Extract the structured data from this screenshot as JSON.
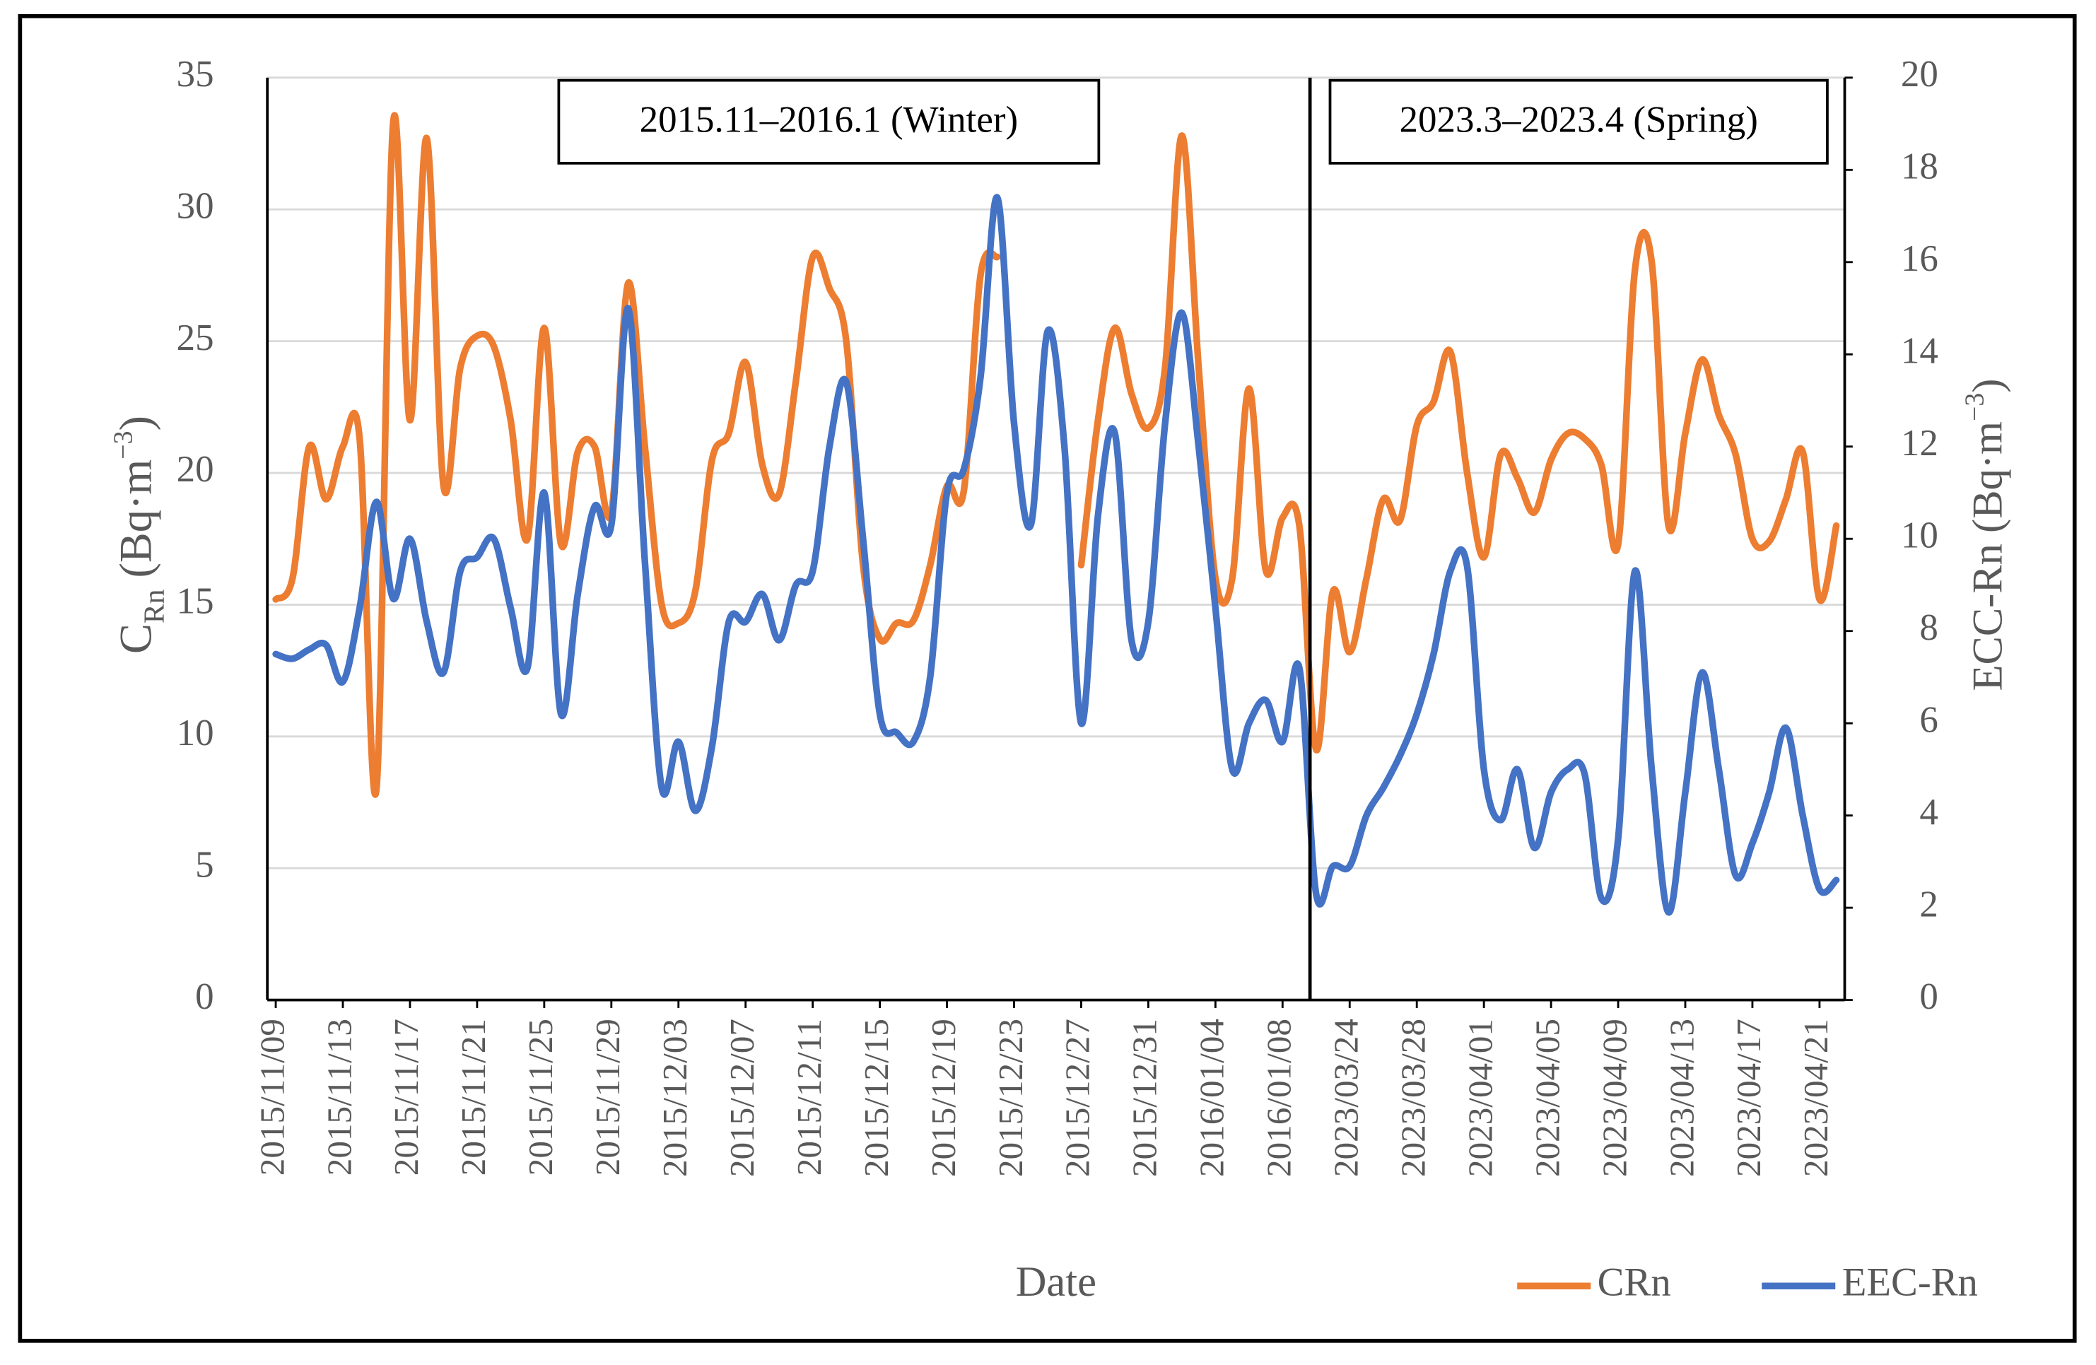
{
  "chart_data": {
    "type": "line",
    "x_label": "Date",
    "y_label": {
      "main": "C",
      "sub": "Rn",
      "rest": " (Bq·m",
      "sup": "−3",
      "end": ")"
    },
    "y2_label": {
      "main": "ECC-Rn (Bq·m",
      "sup": "−3",
      "end": ")"
    },
    "annotations": [
      "2015.11–2016.1 (Winter)",
      "2023.3–2023.4 (Spring)"
    ],
    "categories": [
      "2015/11/09",
      null,
      null,
      null,
      "2015/11/13",
      null,
      null,
      null,
      "2015/11/17",
      null,
      null,
      null,
      "2015/11/21",
      null,
      null,
      null,
      "2015/11/25",
      null,
      null,
      null,
      "2015/11/29",
      null,
      null,
      null,
      "2015/12/03",
      null,
      null,
      null,
      "2015/12/07",
      null,
      null,
      null,
      "2015/12/11",
      null,
      null,
      null,
      "2015/12/15",
      null,
      null,
      null,
      "2015/12/19",
      null,
      null,
      null,
      "2015/12/23",
      null,
      null,
      null,
      "2015/12/27",
      null,
      null,
      null,
      "2015/12/31",
      null,
      null,
      null,
      "2016/01/04",
      null,
      null,
      null,
      "2016/01/08",
      null,
      null,
      null,
      "2023/03/24",
      null,
      null,
      null,
      "2023/03/28",
      null,
      null,
      null,
      "2023/04/01",
      null,
      null,
      null,
      "2023/04/05",
      null,
      null,
      null,
      "2023/04/09",
      null,
      null,
      null,
      "2023/04/13",
      null,
      null,
      null,
      "2023/04/17",
      null,
      null,
      null,
      "2023/04/21",
      null
    ],
    "series": [
      {
        "name": "CRn",
        "color": "#ED7D31",
        "values": [
          15.2,
          16,
          21,
          19,
          21,
          21.3,
          8,
          33.3,
          22,
          32.7,
          19.5,
          24,
          25.2,
          24.8,
          22,
          17.5,
          25.5,
          17.3,
          20.8,
          21,
          18.5,
          27.2,
          21,
          15,
          14.3,
          15.5,
          20.5,
          21.5,
          24.2,
          20.3,
          19.2,
          23.5,
          28.2,
          27,
          25,
          16.5,
          13.7,
          14.3,
          14.4,
          16.5,
          19.5,
          19.3,
          27.5,
          28.2,
          null,
          null,
          null,
          null,
          16.5,
          22,
          25.5,
          23,
          21.7,
          24,
          32.8,
          24,
          16,
          16,
          23.2,
          16.3,
          18.3,
          18,
          9.5,
          15.5,
          13.2,
          16,
          19,
          18.2,
          21.8,
          22.7,
          24.6,
          20,
          16.8,
          20.7,
          19.8,
          18.5,
          20.5,
          21.5,
          21.3,
          20.3,
          17.3,
          27.7,
          28,
          18,
          21.5,
          24.3,
          22.2,
          20.7,
          17.5,
          17.4,
          19,
          20.8,
          15.2,
          18
        ]
      },
      {
        "name": "EEC-Rn",
        "color": "#4472C4",
        "axis": "y2",
        "values": [
          7.5,
          7.4,
          7.6,
          7.7,
          6.9,
          8.5,
          10.8,
          8.7,
          10,
          8.2,
          7.1,
          9.3,
          9.6,
          10,
          8.5,
          7.2,
          11,
          6.2,
          8.8,
          10.7,
          10.3,
          15,
          9.5,
          4.6,
          5.6,
          4.1,
          5.5,
          8.2,
          8.2,
          8.8,
          7.8,
          9,
          9.3,
          12,
          13.4,
          10,
          6.2,
          5.8,
          5.6,
          7,
          11,
          11.5,
          13.5,
          17.4,
          12.5,
          10.3,
          14.5,
          12,
          6,
          10.5,
          12.3,
          7.8,
          8.2,
          12.5,
          14.9,
          12,
          8.5,
          5,
          6,
          6.5,
          5.6,
          7.2,
          2.3,
          2.9,
          2.9,
          4,
          4.6,
          5.3,
          6.2,
          7.5,
          9.3,
          9.4,
          5,
          3.9,
          5,
          3.3,
          4.5,
          5,
          4.9,
          2.2,
          3.5,
          9.3,
          5,
          1.9,
          4.5,
          7.1,
          5,
          2.7,
          3.4,
          4.5,
          5.9,
          4,
          2.4,
          2.6
        ]
      }
    ],
    "ylim": [
      0,
      35
    ],
    "yticks": [
      0,
      5,
      10,
      15,
      20,
      25,
      30,
      35
    ],
    "y2lim": [
      0,
      20
    ],
    "y2ticks": [
      0,
      2,
      4,
      6,
      8,
      10,
      12,
      14,
      16,
      18,
      20
    ],
    "grid": true
  }
}
